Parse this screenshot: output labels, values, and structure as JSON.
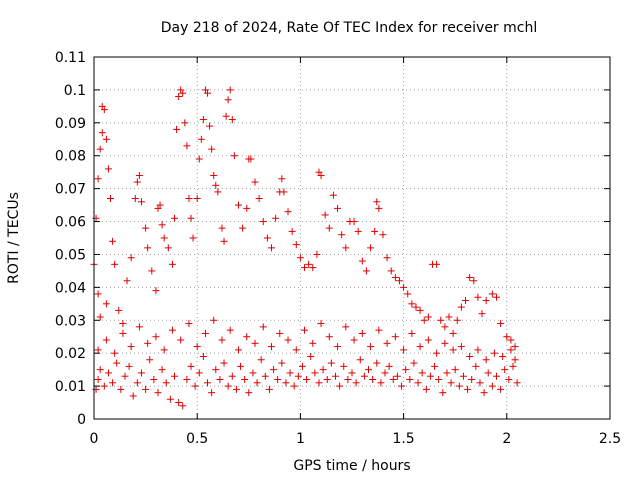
{
  "chart_data": {
    "type": "scatter",
    "title": "Day 218 of 2024, Rate Of TEC Index for receiver mchl",
    "xlabel": "GPS time / hours",
    "ylabel": "ROTI / TECUs",
    "xlim": [
      0,
      2.5
    ],
    "ylim": [
      0,
      0.11
    ],
    "xticks": [
      0,
      0.5,
      1,
      1.5,
      2,
      2.5
    ],
    "xtick_labels": [
      "0",
      "0.5",
      "1",
      "1.5",
      "2",
      "2.5"
    ],
    "yticks": [
      0,
      0.01,
      0.02,
      0.03,
      0.04,
      0.05,
      0.06,
      0.07,
      0.08,
      0.09,
      0.1,
      0.11
    ],
    "ytick_labels": [
      "0",
      "0.01",
      "0.02",
      "0.03",
      "0.04",
      "0.05",
      "0.06",
      "0.07",
      "0.08",
      "0.09",
      "0.1",
      "0.11"
    ],
    "grid": true,
    "marker": "+",
    "color": "#e00000",
    "series": [
      {
        "name": "ROTI",
        "points": [
          [
            0.0,
            0.047
          ],
          [
            0.01,
            0.061
          ],
          [
            0.02,
            0.073
          ],
          [
            0.03,
            0.082
          ],
          [
            0.04,
            0.087
          ],
          [
            0.04,
            0.095
          ],
          [
            0.05,
            0.094
          ],
          [
            0.06,
            0.085
          ],
          [
            0.07,
            0.076
          ],
          [
            0.08,
            0.067
          ],
          [
            0.02,
            0.038
          ],
          [
            0.03,
            0.031
          ],
          [
            0.06,
            0.035
          ],
          [
            0.09,
            0.054
          ],
          [
            0.1,
            0.047
          ],
          [
            0.12,
            0.033
          ],
          [
            0.14,
            0.029
          ],
          [
            0.16,
            0.042
          ],
          [
            0.18,
            0.049
          ],
          [
            0.2,
            0.067
          ],
          [
            0.21,
            0.072
          ],
          [
            0.22,
            0.074
          ],
          [
            0.23,
            0.066
          ],
          [
            0.25,
            0.058
          ],
          [
            0.26,
            0.052
          ],
          [
            0.28,
            0.045
          ],
          [
            0.3,
            0.039
          ],
          [
            0.31,
            0.064
          ],
          [
            0.32,
            0.065
          ],
          [
            0.33,
            0.059
          ],
          [
            0.34,
            0.055
          ],
          [
            0.36,
            0.052
          ],
          [
            0.38,
            0.047
          ],
          [
            0.39,
            0.061
          ],
          [
            0.4,
            0.088
          ],
          [
            0.41,
            0.098
          ],
          [
            0.42,
            0.1
          ],
          [
            0.43,
            0.099
          ],
          [
            0.44,
            0.09
          ],
          [
            0.45,
            0.083
          ],
          [
            0.46,
            0.067
          ],
          [
            0.47,
            0.061
          ],
          [
            0.48,
            0.055
          ],
          [
            0.5,
            0.067
          ],
          [
            0.51,
            0.079
          ],
          [
            0.52,
            0.085
          ],
          [
            0.53,
            0.091
          ],
          [
            0.54,
            0.1
          ],
          [
            0.55,
            0.099
          ],
          [
            0.56,
            0.089
          ],
          [
            0.57,
            0.082
          ],
          [
            0.58,
            0.074
          ],
          [
            0.59,
            0.071
          ],
          [
            0.6,
            0.069
          ],
          [
            0.62,
            0.058
          ],
          [
            0.63,
            0.054
          ],
          [
            0.64,
            0.092
          ],
          [
            0.65,
            0.097
          ],
          [
            0.66,
            0.1
          ],
          [
            0.67,
            0.091
          ],
          [
            0.68,
            0.08
          ],
          [
            0.7,
            0.065
          ],
          [
            0.72,
            0.058
          ],
          [
            0.74,
            0.064
          ],
          [
            0.75,
            0.079
          ],
          [
            0.76,
            0.079
          ],
          [
            0.78,
            0.072
          ],
          [
            0.8,
            0.067
          ],
          [
            0.82,
            0.06
          ],
          [
            0.84,
            0.055
          ],
          [
            0.86,
            0.052
          ],
          [
            0.88,
            0.061
          ],
          [
            0.9,
            0.069
          ],
          [
            0.91,
            0.073
          ],
          [
            0.92,
            0.069
          ],
          [
            0.94,
            0.063
          ],
          [
            0.96,
            0.057
          ],
          [
            0.98,
            0.053
          ],
          [
            1.0,
            0.049
          ],
          [
            1.02,
            0.046
          ],
          [
            1.04,
            0.047
          ],
          [
            1.06,
            0.046
          ],
          [
            1.08,
            0.05
          ],
          [
            1.09,
            0.075
          ],
          [
            1.1,
            0.074
          ],
          [
            1.12,
            0.062
          ],
          [
            1.14,
            0.058
          ],
          [
            1.16,
            0.068
          ],
          [
            1.18,
            0.064
          ],
          [
            1.2,
            0.056
          ],
          [
            1.22,
            0.052
          ],
          [
            1.24,
            0.06
          ],
          [
            1.26,
            0.06
          ],
          [
            1.28,
            0.057
          ],
          [
            1.3,
            0.048
          ],
          [
            1.32,
            0.045
          ],
          [
            1.34,
            0.052
          ],
          [
            1.36,
            0.057
          ],
          [
            1.37,
            0.066
          ],
          [
            1.38,
            0.064
          ],
          [
            1.4,
            0.056
          ],
          [
            1.42,
            0.049
          ],
          [
            1.44,
            0.045
          ],
          [
            1.46,
            0.043
          ],
          [
            1.48,
            0.042
          ],
          [
            1.5,
            0.04
          ],
          [
            1.52,
            0.038
          ],
          [
            1.54,
            0.035
          ],
          [
            1.56,
            0.034
          ],
          [
            1.58,
            0.033
          ],
          [
            1.6,
            0.03
          ],
          [
            1.62,
            0.031
          ],
          [
            1.64,
            0.047
          ],
          [
            1.66,
            0.047
          ],
          [
            1.68,
            0.03
          ],
          [
            1.7,
            0.028
          ],
          [
            1.72,
            0.031
          ],
          [
            1.74,
            0.026
          ],
          [
            1.76,
            0.03
          ],
          [
            1.78,
            0.034
          ],
          [
            1.8,
            0.036
          ],
          [
            1.82,
            0.043
          ],
          [
            1.84,
            0.042
          ],
          [
            1.86,
            0.037
          ],
          [
            1.88,
            0.032
          ],
          [
            1.9,
            0.036
          ],
          [
            1.93,
            0.038
          ],
          [
            1.95,
            0.037
          ],
          [
            1.97,
            0.029
          ],
          [
            2.0,
            0.025
          ],
          [
            2.02,
            0.024
          ],
          [
            2.04,
            0.022
          ],
          [
            0.01,
            0.009
          ],
          [
            0.02,
            0.012
          ],
          [
            0.03,
            0.015
          ],
          [
            0.05,
            0.01
          ],
          [
            0.07,
            0.014
          ],
          [
            0.09,
            0.011
          ],
          [
            0.11,
            0.017
          ],
          [
            0.13,
            0.009
          ],
          [
            0.15,
            0.013
          ],
          [
            0.17,
            0.016
          ],
          [
            0.19,
            0.007
          ],
          [
            0.21,
            0.011
          ],
          [
            0.23,
            0.014
          ],
          [
            0.25,
            0.009
          ],
          [
            0.27,
            0.018
          ],
          [
            0.29,
            0.012
          ],
          [
            0.31,
            0.008
          ],
          [
            0.33,
            0.015
          ],
          [
            0.35,
            0.011
          ],
          [
            0.37,
            0.006
          ],
          [
            0.39,
            0.013
          ],
          [
            0.41,
            0.005
          ],
          [
            0.43,
            0.004
          ],
          [
            0.45,
            0.012
          ],
          [
            0.47,
            0.016
          ],
          [
            0.49,
            0.01
          ],
          [
            0.51,
            0.014
          ],
          [
            0.53,
            0.019
          ],
          [
            0.55,
            0.011
          ],
          [
            0.57,
            0.008
          ],
          [
            0.59,
            0.015
          ],
          [
            0.61,
            0.012
          ],
          [
            0.63,
            0.017
          ],
          [
            0.65,
            0.01
          ],
          [
            0.67,
            0.013
          ],
          [
            0.69,
            0.009
          ],
          [
            0.71,
            0.016
          ],
          [
            0.73,
            0.012
          ],
          [
            0.75,
            0.008
          ],
          [
            0.77,
            0.014
          ],
          [
            0.79,
            0.011
          ],
          [
            0.81,
            0.018
          ],
          [
            0.83,
            0.013
          ],
          [
            0.85,
            0.009
          ],
          [
            0.87,
            0.015
          ],
          [
            0.89,
            0.012
          ],
          [
            0.91,
            0.017
          ],
          [
            0.93,
            0.011
          ],
          [
            0.95,
            0.014
          ],
          [
            0.97,
            0.01
          ],
          [
            0.99,
            0.013
          ],
          [
            1.01,
            0.016
          ],
          [
            1.03,
            0.012
          ],
          [
            1.05,
            0.019
          ],
          [
            1.07,
            0.014
          ],
          [
            1.09,
            0.011
          ],
          [
            1.11,
            0.015
          ],
          [
            1.13,
            0.012
          ],
          [
            1.15,
            0.017
          ],
          [
            1.17,
            0.013
          ],
          [
            1.19,
            0.01
          ],
          [
            1.21,
            0.016
          ],
          [
            1.23,
            0.012
          ],
          [
            1.25,
            0.014
          ],
          [
            1.27,
            0.011
          ],
          [
            1.29,
            0.018
          ],
          [
            1.31,
            0.013
          ],
          [
            1.33,
            0.015
          ],
          [
            1.35,
            0.012
          ],
          [
            1.37,
            0.017
          ],
          [
            1.39,
            0.011
          ],
          [
            1.41,
            0.014
          ],
          [
            1.43,
            0.016
          ],
          [
            1.45,
            0.012
          ],
          [
            1.47,
            0.013
          ],
          [
            1.49,
            0.01
          ],
          [
            1.51,
            0.015
          ],
          [
            1.53,
            0.012
          ],
          [
            1.55,
            0.017
          ],
          [
            1.57,
            0.011
          ],
          [
            1.59,
            0.014
          ],
          [
            1.61,
            0.009
          ],
          [
            1.63,
            0.013
          ],
          [
            1.65,
            0.016
          ],
          [
            1.67,
            0.012
          ],
          [
            1.69,
            0.008
          ],
          [
            1.71,
            0.014
          ],
          [
            1.73,
            0.011
          ],
          [
            1.75,
            0.015
          ],
          [
            1.77,
            0.01
          ],
          [
            1.79,
            0.013
          ],
          [
            1.81,
            0.009
          ],
          [
            1.83,
            0.012
          ],
          [
            1.85,
            0.016
          ],
          [
            1.87,
            0.011
          ],
          [
            1.89,
            0.008
          ],
          [
            1.91,
            0.014
          ],
          [
            1.93,
            0.01
          ],
          [
            1.95,
            0.013
          ],
          [
            1.97,
            0.009
          ],
          [
            1.99,
            0.015
          ],
          [
            2.01,
            0.012
          ],
          [
            2.03,
            0.016
          ],
          [
            2.05,
            0.011
          ],
          [
            0.02,
            0.021
          ],
          [
            0.06,
            0.024
          ],
          [
            0.1,
            0.02
          ],
          [
            0.14,
            0.026
          ],
          [
            0.18,
            0.022
          ],
          [
            0.22,
            0.028
          ],
          [
            0.26,
            0.023
          ],
          [
            0.3,
            0.025
          ],
          [
            0.34,
            0.021
          ],
          [
            0.38,
            0.027
          ],
          [
            0.42,
            0.024
          ],
          [
            0.46,
            0.029
          ],
          [
            0.5,
            0.022
          ],
          [
            0.54,
            0.026
          ],
          [
            0.58,
            0.03
          ],
          [
            0.62,
            0.024
          ],
          [
            0.66,
            0.027
          ],
          [
            0.7,
            0.021
          ],
          [
            0.74,
            0.025
          ],
          [
            0.78,
            0.023
          ],
          [
            0.82,
            0.028
          ],
          [
            0.86,
            0.022
          ],
          [
            0.9,
            0.026
          ],
          [
            0.94,
            0.024
          ],
          [
            0.98,
            0.021
          ],
          [
            1.02,
            0.027
          ],
          [
            1.06,
            0.023
          ],
          [
            1.1,
            0.029
          ],
          [
            1.14,
            0.025
          ],
          [
            1.18,
            0.022
          ],
          [
            1.22,
            0.028
          ],
          [
            1.26,
            0.024
          ],
          [
            1.3,
            0.026
          ],
          [
            1.34,
            0.022
          ],
          [
            1.38,
            0.027
          ],
          [
            1.42,
            0.023
          ],
          [
            1.46,
            0.025
          ],
          [
            1.5,
            0.021
          ],
          [
            1.54,
            0.026
          ],
          [
            1.58,
            0.022
          ],
          [
            1.62,
            0.024
          ],
          [
            1.66,
            0.02
          ],
          [
            1.7,
            0.023
          ],
          [
            1.74,
            0.021
          ],
          [
            1.78,
            0.022
          ],
          [
            1.82,
            0.019
          ],
          [
            1.86,
            0.021
          ],
          [
            1.9,
            0.018
          ],
          [
            1.94,
            0.02
          ],
          [
            1.98,
            0.019
          ],
          [
            2.02,
            0.021
          ],
          [
            2.04,
            0.018
          ]
        ]
      }
    ]
  }
}
